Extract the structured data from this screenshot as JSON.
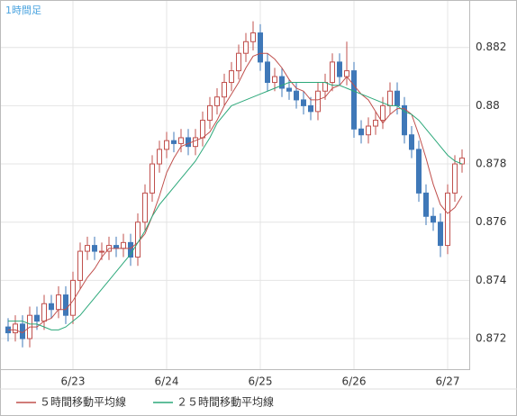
{
  "chart_data": {
    "type": "candlestick",
    "title": "1時間足",
    "categories": [
      null,
      null,
      null,
      null,
      null,
      null,
      null,
      null,
      null,
      "6/23",
      null,
      null,
      null,
      null,
      null,
      null,
      null,
      null,
      null,
      null,
      null,
      null,
      "6/24",
      null,
      null,
      null,
      null,
      null,
      null,
      null,
      null,
      null,
      null,
      null,
      null,
      "6/25",
      null,
      null,
      null,
      null,
      null,
      null,
      null,
      null,
      null,
      null,
      null,
      null,
      "6/26",
      null,
      null,
      null,
      null,
      null,
      null,
      null,
      null,
      null,
      null,
      null,
      null,
      "6/27",
      null,
      null
    ],
    "open": [
      0.8724,
      0.8722,
      0.8725,
      0.872,
      0.8728,
      0.8726,
      0.8732,
      0.873,
      0.8735,
      0.8728,
      0.874,
      0.875,
      0.8752,
      0.875,
      0.875,
      0.8752,
      0.8751,
      0.8753,
      0.8748,
      0.876,
      0.877,
      0.878,
      0.8785,
      0.8788,
      0.8787,
      0.8789,
      0.8786,
      0.8789,
      0.8795,
      0.88,
      0.8803,
      0.8808,
      0.8812,
      0.8818,
      0.8822,
      0.8825,
      0.8815,
      0.8808,
      0.881,
      0.8806,
      0.8805,
      0.8802,
      0.88,
      0.8798,
      0.8805,
      0.8808,
      0.8815,
      0.881,
      0.8812,
      0.8792,
      0.879,
      0.8793,
      0.8795,
      0.88,
      0.8805,
      0.88,
      0.879,
      0.8785,
      0.877,
      0.8762,
      0.876,
      0.8752,
      0.877,
      0.878
    ],
    "high": [
      0.8727,
      0.8728,
      0.8728,
      0.8731,
      0.8731,
      0.8735,
      0.8735,
      0.8738,
      0.8738,
      0.8743,
      0.8753,
      0.8755,
      0.8755,
      0.8753,
      0.8755,
      0.8755,
      0.8756,
      0.8756,
      0.8763,
      0.8773,
      0.8783,
      0.8788,
      0.8791,
      0.8791,
      0.8792,
      0.8792,
      0.8792,
      0.8798,
      0.8803,
      0.8806,
      0.8811,
      0.8815,
      0.8821,
      0.8825,
      0.8829,
      0.8828,
      0.8818,
      0.8813,
      0.8813,
      0.8809,
      0.8808,
      0.8805,
      0.8803,
      0.8808,
      0.8811,
      0.8818,
      0.8818,
      0.8822,
      0.8815,
      0.8795,
      0.8796,
      0.8798,
      0.8803,
      0.8808,
      0.8808,
      0.8803,
      0.8793,
      0.8788,
      0.8773,
      0.8765,
      0.8763,
      0.8773,
      0.8783,
      0.8785
    ],
    "low": [
      0.8719,
      0.8719,
      0.8717,
      0.8717,
      0.8723,
      0.8723,
      0.8727,
      0.8727,
      0.8725,
      0.8725,
      0.8737,
      0.8747,
      0.8747,
      0.8747,
      0.8747,
      0.8748,
      0.8748,
      0.8745,
      0.8745,
      0.8757,
      0.8767,
      0.8777,
      0.8782,
      0.8784,
      0.8784,
      0.8783,
      0.8783,
      0.8786,
      0.8792,
      0.8797,
      0.88,
      0.8805,
      0.8809,
      0.8815,
      0.8819,
      0.8812,
      0.8805,
      0.8805,
      0.8803,
      0.8802,
      0.8799,
      0.8797,
      0.8795,
      0.8795,
      0.8802,
      0.8805,
      0.8807,
      0.8807,
      0.8789,
      0.8787,
      0.8787,
      0.879,
      0.8792,
      0.8797,
      0.8797,
      0.8787,
      0.8782,
      0.8767,
      0.8759,
      0.8757,
      0.8748,
      0.8749,
      0.8767,
      0.8777
    ],
    "close": [
      0.8722,
      0.8725,
      0.872,
      0.8728,
      0.8726,
      0.8732,
      0.873,
      0.8735,
      0.8728,
      0.874,
      0.875,
      0.8752,
      0.875,
      0.875,
      0.8752,
      0.8751,
      0.8753,
      0.8748,
      0.876,
      0.877,
      0.878,
      0.8785,
      0.8788,
      0.8787,
      0.8789,
      0.8786,
      0.8789,
      0.8795,
      0.88,
      0.8803,
      0.8808,
      0.8812,
      0.8818,
      0.8822,
      0.8825,
      0.8815,
      0.8808,
      0.881,
      0.8806,
      0.8805,
      0.8802,
      0.88,
      0.8798,
      0.8805,
      0.8808,
      0.8815,
      0.881,
      0.8812,
      0.8792,
      0.879,
      0.8793,
      0.8795,
      0.88,
      0.8805,
      0.88,
      0.879,
      0.8785,
      0.877,
      0.8762,
      0.876,
      0.8752,
      0.877,
      0.878,
      0.8782
    ],
    "up_color": "#c0504d",
    "down_color": "#3f78b8",
    "series": [
      {
        "name": "５時間移動平均線",
        "color": "#c0504d",
        "values": [
          0.8723,
          0.8723,
          0.8722,
          0.8724,
          0.8724,
          0.8726,
          0.8727,
          0.873,
          0.873,
          0.8733,
          0.8737,
          0.8741,
          0.8744,
          0.8748,
          0.8751,
          0.8751,
          0.8751,
          0.8751,
          0.8753,
          0.8756,
          0.8762,
          0.8769,
          0.8777,
          0.8782,
          0.8786,
          0.8787,
          0.8788,
          0.8789,
          0.8791,
          0.8795,
          0.88,
          0.8804,
          0.8808,
          0.8813,
          0.8817,
          0.8818,
          0.8818,
          0.8816,
          0.8813,
          0.8809,
          0.8806,
          0.8805,
          0.8802,
          0.8802,
          0.8803,
          0.8806,
          0.8807,
          0.881,
          0.8807,
          0.8804,
          0.8802,
          0.8798,
          0.8794,
          0.8797,
          0.8799,
          0.8799,
          0.8797,
          0.879,
          0.8782,
          0.8773,
          0.8766,
          0.8763,
          0.8765,
          0.8769
        ]
      },
      {
        "name": "２５時間移動平均線",
        "color": "#2ca87a",
        "values": [
          0.8726,
          0.8726,
          0.8726,
          0.8725,
          0.8725,
          0.8724,
          0.8723,
          0.8723,
          0.8724,
          0.8726,
          0.8728,
          0.8731,
          0.8734,
          0.8737,
          0.874,
          0.8743,
          0.8746,
          0.8749,
          0.8753,
          0.8757,
          0.8762,
          0.8766,
          0.8769,
          0.8772,
          0.8775,
          0.8778,
          0.8781,
          0.8785,
          0.8789,
          0.8794,
          0.8797,
          0.88,
          0.8801,
          0.8802,
          0.8803,
          0.8804,
          0.8805,
          0.8806,
          0.8807,
          0.8808,
          0.8808,
          0.8808,
          0.8808,
          0.8808,
          0.8808,
          0.8807,
          0.8807,
          0.8806,
          0.8805,
          0.8804,
          0.8803,
          0.8802,
          0.8801,
          0.88,
          0.88,
          0.8798,
          0.8797,
          0.8795,
          0.8792,
          0.8789,
          0.8786,
          0.8783,
          0.8781,
          0.878
        ]
      }
    ],
    "ylim": [
      0.87095,
      0.8836
    ],
    "yticks": [
      0.872,
      0.874,
      0.876,
      0.878,
      0.88,
      0.882
    ],
    "grid": true
  }
}
